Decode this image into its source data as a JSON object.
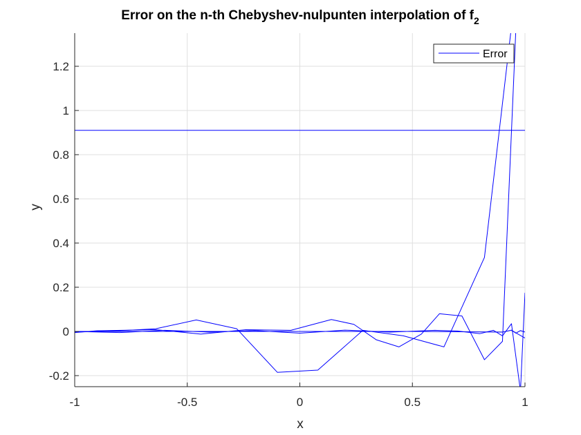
{
  "chart_data": {
    "type": "line",
    "title": "Error on the n-th Chebyshev-nulpunten interpolation of f",
    "title_subscript": "2",
    "xlabel": "x",
    "ylabel": "y",
    "xlim": [
      -1,
      1
    ],
    "ylim": [
      -0.25,
      1.35
    ],
    "xticks": [
      -1,
      -0.5,
      0,
      0.5,
      1
    ],
    "xtick_labels": [
      "-1",
      "-0.5",
      "0",
      "0.5",
      "1"
    ],
    "yticks": [
      -0.2,
      0,
      0.2,
      0.4,
      0.6,
      0.8,
      1,
      1.2
    ],
    "ytick_labels": [
      "-0.2",
      "0",
      "0.2",
      "0.4",
      "0.6",
      "0.8",
      "1",
      "1.2"
    ],
    "grid": true,
    "legend": {
      "entries": [
        "Error"
      ],
      "location": "top-right"
    },
    "series_color": "#0000ff",
    "series": [
      {
        "x": [
          -1,
          1
        ],
        "y": [
          0.91,
          0.91
        ]
      },
      {
        "x": [
          -1,
          -0.82,
          -0.64,
          -0.46,
          -0.28,
          -0.1,
          0.08,
          0.28,
          0.46,
          0.64,
          0.82,
          0.94,
          1
        ],
        "y": [
          -0.003,
          0.002,
          0.012,
          0.052,
          0.012,
          -0.185,
          -0.175,
          0.005,
          -0.02,
          -0.07,
          0.335,
          1.38,
          1.38
        ]
      },
      {
        "x": [
          -1,
          -0.9,
          -0.64,
          -0.44,
          -0.24,
          -0.04,
          0.14,
          0.24,
          0.34,
          0.44,
          0.54,
          0.62,
          0.72,
          0.82,
          0.9,
          0.96,
          1
        ],
        "y": [
          -0.005,
          0.003,
          0.008,
          -0.012,
          0.008,
          0.005,
          0.054,
          0.032,
          -0.038,
          -0.07,
          -0.012,
          0.08,
          0.07,
          -0.128,
          -0.045,
          1.38,
          1.38
        ]
      },
      {
        "x": [
          -1,
          -0.8,
          -0.6,
          -0.4,
          -0.2,
          0,
          0.2,
          0.4,
          0.6,
          0.7,
          0.8,
          0.86,
          0.9,
          0.94,
          0.98,
          1
        ],
        "y": [
          0,
          -0.005,
          0.005,
          -0.003,
          0.004,
          -0.008,
          0.006,
          -0.003,
          0.005,
          0.002,
          -0.01,
          0.005,
          -0.02,
          0.035,
          -0.27,
          0.175
        ]
      },
      {
        "x": [
          -1,
          -0.5,
          0,
          0.5,
          0.9,
          0.94,
          0.96,
          0.98,
          1
        ],
        "y": [
          0,
          0,
          0,
          0,
          -0.003,
          0.006,
          -0.008,
          0.004,
          -0.003
        ]
      },
      {
        "x": [
          0.94,
          1
        ],
        "y": [
          0.005,
          -0.03
        ]
      }
    ]
  }
}
